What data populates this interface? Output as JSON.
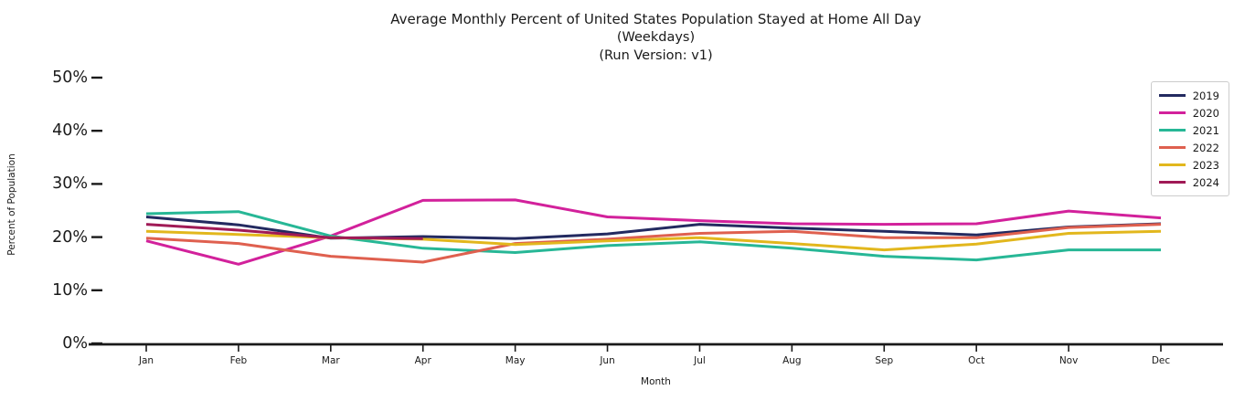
{
  "chart_data": {
    "type": "line",
    "title": "Average Monthly Percent of United States Population Stayed at Home All Day",
    "subtitle": "(Weekdays)",
    "run_version": "(Run Version: v1)",
    "xlabel": "Month",
    "ylabel": "Percent of Population",
    "categories": [
      "Jan",
      "Feb",
      "Mar",
      "Apr",
      "May",
      "Jun",
      "Jul",
      "Aug",
      "Sep",
      "Oct",
      "Nov",
      "Dec"
    ],
    "y_ticks": [
      0,
      10,
      20,
      30,
      40,
      50
    ],
    "y_ticklabels": [
      "0%",
      "10%",
      "20%",
      "30%",
      "40%",
      "50%"
    ],
    "ylim": [
      0,
      50
    ],
    "grid": false,
    "legend_position": "upper right",
    "axis_color": "#1a1a1a",
    "series": [
      {
        "name": "2019",
        "color": "#232a60",
        "values": [
          23.8,
          22.3,
          19.8,
          20.1,
          19.7,
          20.6,
          22.4,
          21.7,
          21.1,
          20.4,
          21.9,
          22.5
        ]
      },
      {
        "name": "2020",
        "color": "#d2219b",
        "values": [
          19.3,
          14.9,
          20.2,
          26.9,
          27.0,
          23.8,
          23.1,
          22.5,
          22.4,
          22.5,
          24.9,
          23.6
        ]
      },
      {
        "name": "2021",
        "color": "#27b796",
        "values": [
          24.4,
          24.8,
          20.2,
          17.9,
          17.1,
          18.4,
          19.1,
          17.9,
          16.4,
          15.7,
          17.6,
          17.6
        ]
      },
      {
        "name": "2022",
        "color": "#df604f",
        "values": [
          19.8,
          18.8,
          16.4,
          15.3,
          18.8,
          19.6,
          20.7,
          21.1,
          19.9,
          19.9,
          21.8,
          22.4
        ]
      },
      {
        "name": "2023",
        "color": "#e2b71d",
        "values": [
          21.1,
          20.5,
          19.9,
          19.6,
          18.6,
          19.3,
          19.9,
          18.8,
          17.6,
          18.7,
          20.7,
          21.1
        ]
      },
      {
        "name": "2024",
        "color": "#a01a56",
        "values": [
          22.4,
          21.3,
          19.9,
          19.7,
          null,
          null,
          null,
          null,
          null,
          null,
          null,
          null
        ]
      }
    ]
  }
}
